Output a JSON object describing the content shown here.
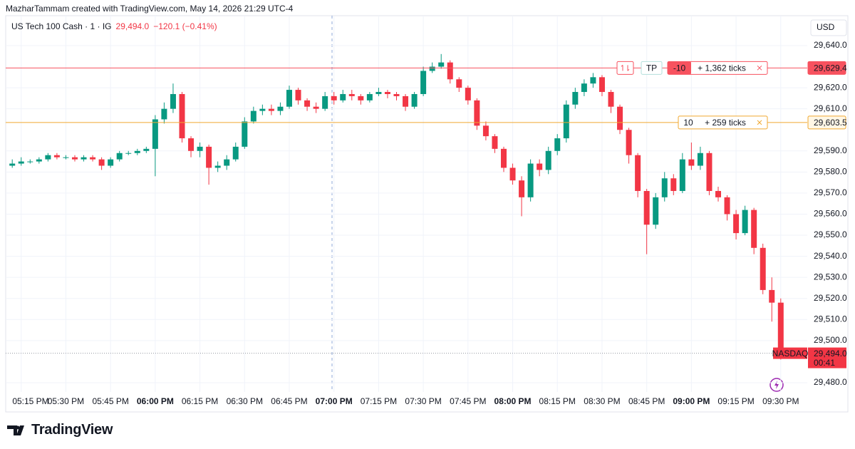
{
  "header": {
    "credit": "MazharTammam created with TradingView.com, May 14, 2026 21:29 UTC-4"
  },
  "footer": {
    "brand": "TradingView"
  },
  "chart_data": {
    "type": "candlestick",
    "symbol": "US Tech 100 Cash · 1 · IG",
    "last_price": "29,494.0",
    "change": "−120.1 (−0.41%)",
    "currency": "USD",
    "up_color": "#089981",
    "down_color": "#f23645",
    "grid": true,
    "x": [
      1032,
      1035,
      1038,
      1041,
      1044,
      1047,
      1050,
      1053,
      1056,
      1059,
      1062,
      1065,
      1068,
      1071,
      1074,
      1077,
      1080,
      1083,
      1086,
      1089,
      1092,
      1095,
      1098,
      1101,
      1104,
      1107,
      1110,
      1113,
      1116,
      1119,
      1122,
      1125,
      1128,
      1131,
      1134,
      1137,
      1140,
      1143,
      1146,
      1149,
      1152,
      1155,
      1158,
      1161,
      1164,
      1167,
      1170,
      1173,
      1176,
      1179,
      1182,
      1185,
      1188,
      1191,
      1194,
      1197,
      1200,
      1203,
      1206,
      1209,
      1212,
      1215,
      1218,
      1221,
      1224,
      1227,
      1230,
      1233,
      1236,
      1239,
      1242,
      1245,
      1248,
      1251,
      1254,
      1257,
      1260,
      1263,
      1266,
      1269,
      1272,
      1275,
      1278,
      1281,
      1284,
      1287,
      1290
    ],
    "open": [
      29583,
      29584,
      29585,
      29585,
      29586,
      29588,
      29587,
      29587,
      29586,
      29587,
      29586,
      29583,
      29586,
      29589,
      29589,
      29590,
      29591,
      29605,
      29610,
      29617,
      29596,
      29590,
      29592,
      29582,
      29583,
      29586,
      29592,
      29604,
      29609,
      29610,
      29609,
      29611,
      29619,
      29614,
      29611,
      29610,
      29616,
      29614,
      29617,
      29616,
      29614,
      29617,
      29618,
      29617,
      29616,
      29611,
      29617,
      29628,
      29630,
      29632,
      29624,
      29620,
      29614,
      29602,
      29597,
      29591,
      29582,
      29576,
      29568,
      29584,
      29581,
      29590,
      29596,
      29612,
      29618,
      29622,
      29625,
      29618,
      29611,
      29600,
      29588,
      29571,
      29555,
      29568,
      29577,
      29571,
      29586,
      29583,
      29589,
      29571,
      29568,
      29560,
      29551,
      29562,
      29544,
      29524,
      29518
    ],
    "high": [
      29586,
      29587,
      29586,
      29587,
      29589,
      29589,
      29588,
      29588,
      29588,
      29588,
      29587,
      29587,
      29590,
      29590,
      29591,
      29592,
      29607,
      29613,
      29622,
      29618,
      29597,
      29594,
      29593,
      29585,
      29588,
      29594,
      29606,
      29611,
      29612,
      29612,
      29613,
      29621,
      29620,
      29615,
      29613,
      29618,
      29618,
      29619,
      29619,
      29617,
      29618,
      29620,
      29619,
      29618,
      29617,
      29618,
      29630,
      29632,
      29636,
      29633,
      29625,
      29621,
      29615,
      29604,
      29598,
      29592,
      29584,
      29578,
      29586,
      29586,
      29592,
      29598,
      29614,
      29620,
      29624,
      29627,
      29626,
      29619,
      29612,
      29601,
      29589,
      29572,
      29570,
      29580,
      29579,
      29589,
      29594,
      29592,
      29590,
      29573,
      29569,
      29562,
      29564,
      29563,
      29546,
      29530,
      29520
    ],
    "low": [
      29582,
      29583,
      29584,
      29584,
      29585,
      29586,
      29586,
      29585,
      29585,
      29585,
      29581,
      29582,
      29585,
      29588,
      29588,
      29589,
      29578,
      29603,
      29608,
      29594,
      29587,
      29587,
      29574,
      29580,
      29581,
      29585,
      29591,
      29603,
      29607,
      29607,
      29607,
      29610,
      29612,
      29609,
      29608,
      29609,
      29612,
      29613,
      29614,
      29612,
      29613,
      29616,
      29615,
      29614,
      29609,
      29610,
      29616,
      29627,
      29629,
      29622,
      29618,
      29612,
      29600,
      29595,
      29589,
      29580,
      29574,
      29559,
      29566,
      29578,
      29579,
      29588,
      29594,
      29610,
      29616,
      29620,
      29616,
      29608,
      29598,
      29584,
      29568,
      29541,
      29553,
      29566,
      29569,
      29570,
      29581,
      29581,
      29569,
      29566,
      29557,
      29548,
      29550,
      29541,
      29522,
      29509,
      29491
    ],
    "close": [
      29584,
      29585,
      29585,
      29586,
      29588,
      29587,
      29587,
      29586,
      29587,
      29586,
      29583,
      29586,
      29589,
      29589,
      29590,
      29591,
      29605,
      29610,
      29617,
      29596,
      29590,
      29592,
      29582,
      29583,
      29586,
      29592,
      29604,
      29609,
      29610,
      29609,
      29611,
      29619,
      29614,
      29611,
      29610,
      29616,
      29614,
      29617,
      29616,
      29614,
      29617,
      29618,
      29617,
      29616,
      29611,
      29617,
      29628,
      29630,
      29632,
      29624,
      29620,
      29614,
      29602,
      29597,
      29591,
      29582,
      29576,
      29568,
      29584,
      29581,
      29590,
      29596,
      29612,
      29618,
      29622,
      29625,
      29618,
      29611,
      29600,
      29588,
      29571,
      29555,
      29568,
      29577,
      29571,
      29586,
      29583,
      29589,
      29571,
      29568,
      29560,
      29551,
      29562,
      29544,
      29524,
      29518,
      29494
    ],
    "xlim": [
      1029.8,
      1298.9
    ],
    "ylim": [
      29475.6,
      29654.2
    ],
    "xticks": [
      {
        "value": 1035,
        "label": "05:15 PM"
      },
      {
        "value": 1050,
        "label": "05:30 PM"
      },
      {
        "value": 1065,
        "label": "05:45 PM"
      },
      {
        "value": 1080,
        "label": "06:00 PM"
      },
      {
        "value": 1095,
        "label": "06:15 PM"
      },
      {
        "value": 1110,
        "label": "06:30 PM"
      },
      {
        "value": 1125,
        "label": "06:45 PM"
      },
      {
        "value": 1140,
        "label": "07:00 PM"
      },
      {
        "value": 1155,
        "label": "07:15 PM"
      },
      {
        "value": 1170,
        "label": "07:30 PM"
      },
      {
        "value": 1185,
        "label": "07:45 PM"
      },
      {
        "value": 1200,
        "label": "08:00 PM"
      },
      {
        "value": 1215,
        "label": "08:15 PM"
      },
      {
        "value": 1230,
        "label": "08:30 PM"
      },
      {
        "value": 1245,
        "label": "08:45 PM"
      },
      {
        "value": 1260,
        "label": "09:00 PM"
      },
      {
        "value": 1275,
        "label": "09:15 PM"
      },
      {
        "value": 1290,
        "label": "09:30 PM"
      }
    ],
    "yticks": [
      {
        "value": 29480,
        "label": "29,480.0"
      },
      {
        "value": 29500,
        "label": "29,500.0"
      },
      {
        "value": 29510,
        "label": "29,510.0"
      },
      {
        "value": 29520,
        "label": "29,520.0"
      },
      {
        "value": 29530,
        "label": "29,530.0"
      },
      {
        "value": 29540,
        "label": "29,540.0"
      },
      {
        "value": 29550,
        "label": "29,550.0"
      },
      {
        "value": 29560,
        "label": "29,560.0"
      },
      {
        "value": 29570,
        "label": "29,570.0"
      },
      {
        "value": 29580,
        "label": "29,580.0"
      },
      {
        "value": 29590,
        "label": "29,590.0"
      },
      {
        "value": 29610,
        "label": "29,610.0"
      },
      {
        "value": 29620,
        "label": "29,620.0"
      },
      {
        "value": 29640,
        "label": "29,640.0"
      }
    ],
    "orders": [
      {
        "price": {
          "value": 29629.4,
          "label": "29,629.4"
        },
        "label": "TP",
        "qty": "-10",
        "ticks": "+ 1,362 ticks",
        "color": "#f7525f"
      },
      {
        "price": {
          "value": 29603.5,
          "label": "29,603.5"
        },
        "qty": "10",
        "ticks": "+ 259 ticks",
        "color": "#f0a830"
      }
    ],
    "last": {
      "price": {
        "value": 29494.0,
        "label": "29,494.0"
      },
      "exchange": "NASDAQ",
      "countdown": "00:41"
    }
  }
}
